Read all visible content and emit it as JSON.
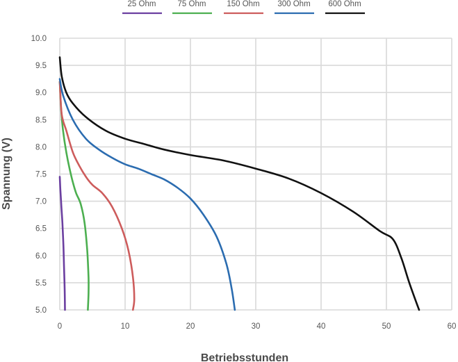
{
  "chart_data": {
    "type": "line",
    "xlabel": "Betriebsstunden",
    "ylabel": "Spannung (V)",
    "xlim": [
      0,
      60
    ],
    "ylim": [
      5.0,
      10.0
    ],
    "xticks": [
      0,
      10,
      20,
      30,
      40,
      50,
      60
    ],
    "yticks": [
      "5.0",
      "5.5",
      "6.0",
      "6.5",
      "7.0",
      "7.5",
      "8.0",
      "8.5",
      "9.0",
      "9.5",
      "10.0"
    ],
    "grid": true,
    "legend_position": "top",
    "series": [
      {
        "name": "25 Ohm",
        "color": "#6b3fa0",
        "points": [
          [
            0,
            7.45
          ],
          [
            0.1,
            7.2
          ],
          [
            0.25,
            6.9
          ],
          [
            0.4,
            6.6
          ],
          [
            0.55,
            6.2
          ],
          [
            0.65,
            5.8
          ],
          [
            0.75,
            5.4
          ],
          [
            0.8,
            5.0
          ]
        ]
      },
      {
        "name": "75 Ohm",
        "color": "#4caf50",
        "points": [
          [
            0,
            9.2
          ],
          [
            0.2,
            8.7
          ],
          [
            0.5,
            8.3
          ],
          [
            1,
            7.9
          ],
          [
            1.5,
            7.6
          ],
          [
            2,
            7.35
          ],
          [
            2.5,
            7.15
          ],
          [
            3.2,
            6.95
          ],
          [
            3.8,
            6.6
          ],
          [
            4.2,
            6.1
          ],
          [
            4.4,
            5.6
          ],
          [
            4.4,
            5.3
          ],
          [
            4.3,
            5.0
          ]
        ]
      },
      {
        "name": "150 Ohm",
        "color": "#cd5c5c",
        "points": [
          [
            0,
            9.2
          ],
          [
            0.3,
            8.6
          ],
          [
            1,
            8.3
          ],
          [
            2,
            7.9
          ],
          [
            3,
            7.65
          ],
          [
            4,
            7.45
          ],
          [
            5,
            7.3
          ],
          [
            6.5,
            7.15
          ],
          [
            8,
            6.9
          ],
          [
            9.5,
            6.5
          ],
          [
            10.5,
            6.1
          ],
          [
            11.2,
            5.6
          ],
          [
            11.4,
            5.2
          ],
          [
            11.2,
            5.0
          ]
        ]
      },
      {
        "name": "300 Ohm",
        "color": "#2b6cb0",
        "points": [
          [
            0,
            9.25
          ],
          [
            0.5,
            8.95
          ],
          [
            2,
            8.5
          ],
          [
            4,
            8.15
          ],
          [
            6,
            7.95
          ],
          [
            8,
            7.8
          ],
          [
            10,
            7.68
          ],
          [
            12,
            7.6
          ],
          [
            14,
            7.5
          ],
          [
            16,
            7.4
          ],
          [
            18,
            7.25
          ],
          [
            20,
            7.05
          ],
          [
            22,
            6.75
          ],
          [
            24,
            6.35
          ],
          [
            25.5,
            5.85
          ],
          [
            26.3,
            5.4
          ],
          [
            26.8,
            5.0
          ]
        ]
      },
      {
        "name": "600 Ohm",
        "color": "#111111",
        "points": [
          [
            0,
            9.65
          ],
          [
            0.3,
            9.3
          ],
          [
            1,
            9.0
          ],
          [
            2,
            8.8
          ],
          [
            4,
            8.55
          ],
          [
            7,
            8.3
          ],
          [
            10,
            8.15
          ],
          [
            13,
            8.05
          ],
          [
            16,
            7.95
          ],
          [
            20,
            7.85
          ],
          [
            25,
            7.75
          ],
          [
            30,
            7.6
          ],
          [
            35,
            7.42
          ],
          [
            40,
            7.15
          ],
          [
            45,
            6.8
          ],
          [
            49,
            6.45
          ],
          [
            51,
            6.3
          ],
          [
            52.3,
            5.95
          ],
          [
            53.5,
            5.5
          ],
          [
            55,
            5.0
          ]
        ]
      }
    ]
  }
}
